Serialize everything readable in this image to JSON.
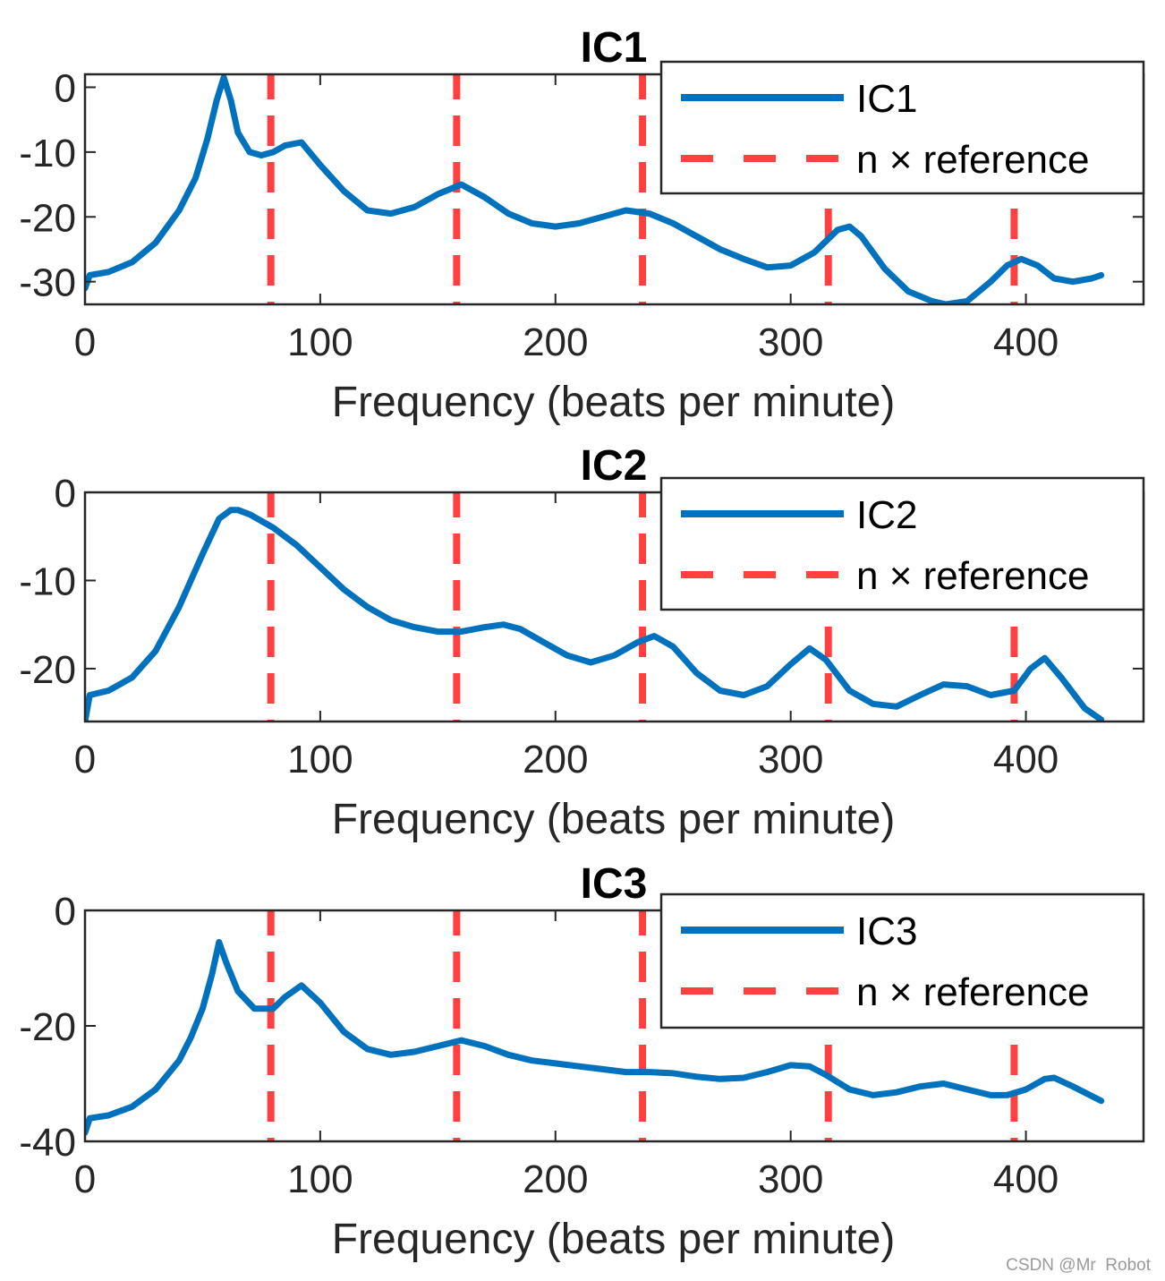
{
  "chart_data": [
    {
      "type": "line",
      "title": "IC1",
      "xlabel": "Frequency (beats per minute)",
      "ylabel": "",
      "xlim": [
        0,
        450
      ],
      "ylim": [
        -33.5,
        2
      ],
      "xticks": [
        0,
        100,
        200,
        300,
        400
      ],
      "yticks": [
        -30,
        -20,
        -10,
        0
      ],
      "ytick_labels": [
        "-30",
        "-20",
        "-10",
        "0"
      ],
      "legend": {
        "position": "top-right",
        "entries": [
          "IC1",
          "n × reference"
        ]
      },
      "reference_lines": [
        79,
        158,
        237,
        316,
        395
      ],
      "series": [
        {
          "name": "IC1",
          "color": "#0072BD",
          "x": [
            0,
            2,
            10,
            20,
            30,
            40,
            47,
            52,
            56,
            59,
            62,
            65,
            70,
            75,
            80,
            85,
            92,
            100,
            110,
            120,
            130,
            140,
            150,
            160,
            170,
            180,
            190,
            200,
            210,
            220,
            230,
            240,
            250,
            260,
            270,
            280,
            290,
            300,
            310,
            320,
            325,
            330,
            340,
            350,
            360,
            366,
            375,
            385,
            392,
            398,
            405,
            412,
            420,
            428,
            432
          ],
          "y": [
            -31,
            -29,
            -28.5,
            -27,
            -24,
            -19,
            -14,
            -8,
            -2,
            1.5,
            -2,
            -7,
            -10,
            -10.5,
            -10,
            -9,
            -8.5,
            -12,
            -16,
            -19,
            -19.5,
            -18.5,
            -16.5,
            -15,
            -17,
            -19.5,
            -21,
            -21.5,
            -21,
            -20,
            -19,
            -19.5,
            -21,
            -23,
            -25,
            -26.5,
            -27.8,
            -27.5,
            -25.5,
            -22,
            -21.5,
            -23,
            -28,
            -31.5,
            -33,
            -33.5,
            -33,
            -30,
            -27.5,
            -26.5,
            -27.5,
            -29.5,
            -30,
            -29.5,
            -29
          ]
        }
      ]
    },
    {
      "type": "line",
      "title": "IC2",
      "xlabel": "Frequency (beats per minute)",
      "ylabel": "",
      "xlim": [
        0,
        450
      ],
      "ylim": [
        -26,
        0
      ],
      "xticks": [
        0,
        100,
        200,
        300,
        400
      ],
      "yticks": [
        -20,
        -10,
        0
      ],
      "ytick_labels": [
        "-20",
        "-10",
        "0"
      ],
      "legend": {
        "position": "top-right",
        "entries": [
          "IC2",
          "n × reference"
        ]
      },
      "reference_lines": [
        79,
        158,
        237,
        316,
        395
      ],
      "series": [
        {
          "name": "IC2",
          "color": "#0072BD",
          "x": [
            0,
            2,
            10,
            20,
            30,
            40,
            50,
            57,
            62,
            65,
            70,
            80,
            90,
            100,
            110,
            120,
            130,
            140,
            150,
            160,
            170,
            178,
            185,
            195,
            205,
            215,
            225,
            235,
            242,
            250,
            260,
            270,
            280,
            290,
            300,
            308,
            315,
            325,
            335,
            345,
            355,
            365,
            375,
            385,
            395,
            402,
            408,
            415,
            425,
            432
          ],
          "y": [
            -26,
            -23,
            -22.5,
            -21,
            -18,
            -13,
            -7,
            -3,
            -2,
            -2,
            -2.5,
            -4,
            -6,
            -8.5,
            -11,
            -13,
            -14.5,
            -15.3,
            -15.8,
            -15.8,
            -15.3,
            -15,
            -15.5,
            -17,
            -18.5,
            -19.3,
            -18.5,
            -17,
            -16.3,
            -17.5,
            -20.5,
            -22.5,
            -23,
            -22,
            -19.5,
            -17.7,
            -19,
            -22.5,
            -24,
            -24.3,
            -23,
            -21.8,
            -22,
            -23,
            -22.5,
            -20,
            -18.8,
            -21,
            -24.5,
            -25.8
          ]
        }
      ]
    },
    {
      "type": "line",
      "title": "IC3",
      "xlabel": "Frequency (beats per minute)",
      "ylabel": "",
      "xlim": [
        0,
        450
      ],
      "ylim": [
        -40,
        0
      ],
      "xticks": [
        0,
        100,
        200,
        300,
        400
      ],
      "yticks": [
        -40,
        -20,
        0
      ],
      "ytick_labels": [
        "-40",
        "-20",
        "0"
      ],
      "legend": {
        "position": "top-right",
        "entries": [
          "IC3",
          "n × reference"
        ]
      },
      "reference_lines": [
        79,
        158,
        237,
        316,
        395
      ],
      "series": [
        {
          "name": "IC3",
          "color": "#0072BD",
          "x": [
            0,
            2,
            10,
            20,
            30,
            40,
            45,
            50,
            54,
            57,
            60,
            65,
            72,
            80,
            85,
            92,
            100,
            110,
            120,
            130,
            140,
            150,
            160,
            170,
            180,
            190,
            200,
            210,
            220,
            230,
            240,
            250,
            260,
            270,
            280,
            290,
            300,
            308,
            315,
            325,
            335,
            345,
            355,
            365,
            375,
            385,
            392,
            400,
            408,
            412,
            420,
            432
          ],
          "y": [
            -38.5,
            -36,
            -35.5,
            -34,
            -31,
            -26,
            -22,
            -17,
            -11,
            -5.5,
            -9,
            -14,
            -17,
            -17,
            -15,
            -13,
            -16,
            -21,
            -24,
            -25,
            -24.5,
            -23.5,
            -22.5,
            -23.5,
            -25,
            -26,
            -26.5,
            -27,
            -27.5,
            -28,
            -28,
            -28.2,
            -28.8,
            -29.2,
            -29,
            -28,
            -26.8,
            -27,
            -28.5,
            -31,
            -32,
            -31.5,
            -30.5,
            -30,
            -31,
            -32,
            -32,
            -31,
            -29.2,
            -29,
            -30.5,
            -33
          ]
        }
      ]
    }
  ]
}
